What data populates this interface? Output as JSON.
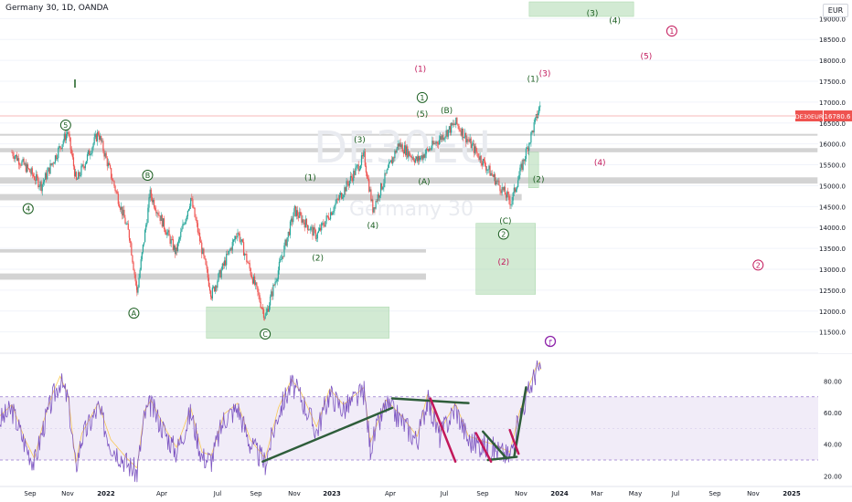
{
  "header": {
    "title": "Germany 30, 1D, OANDA"
  },
  "currency": "EUR",
  "watermark": {
    "symbol": "DE30EU",
    "name": "Germany 30"
  },
  "chart_data": {
    "type": "candlestick",
    "symbol": "Germany 30",
    "timeframe": "1D",
    "broker": "OANDA",
    "last_price": {
      "label": "DE30EUR",
      "value": "16780.6"
    },
    "price_axis": {
      "ticks": [
        11500,
        12000,
        12500,
        13000,
        13500,
        14000,
        14500,
        15000,
        15500,
        16000,
        16500,
        17000,
        17500,
        18000,
        18500,
        19000
      ],
      "range": [
        11100,
        19400
      ]
    },
    "time_axis": {
      "labels": [
        "Sep",
        "Nov",
        "2022",
        "Apr",
        "Jul",
        "Sep",
        "Nov",
        "2023",
        "Apr",
        "Jul",
        "Sep",
        "Nov",
        "2024",
        "Mar",
        "May",
        "Jul",
        "Sep",
        "Nov",
        "2025"
      ]
    },
    "price_path": [
      [
        "2021-08-20",
        15800
      ],
      [
        "2021-09-20",
        15300
      ],
      [
        "2021-10-06",
        15000
      ],
      [
        "2021-11-17",
        16300
      ],
      [
        "2021-12-01",
        15100
      ],
      [
        "2022-01-05",
        16270
      ],
      [
        "2022-02-24",
        13800
      ],
      [
        "2022-03-08",
        12450
      ],
      [
        "2022-03-29",
        14800
      ],
      [
        "2022-05-09",
        13400
      ],
      [
        "2022-06-02",
        14700
      ],
      [
        "2022-07-05",
        12400
      ],
      [
        "2022-08-16",
        13900
      ],
      [
        "2022-09-29",
        11850
      ],
      [
        "2022-11-15",
        14400
      ],
      [
        "2022-12-20",
        13800
      ],
      [
        "2023-03-06",
        15700
      ],
      [
        "2023-03-20",
        14450
      ],
      [
        "2023-04-30",
        16000
      ],
      [
        "2023-05-30",
        15600
      ],
      [
        "2023-07-31",
        16500
      ],
      [
        "2023-10-27",
        14600
      ],
      [
        "2023-12-14",
        17000
      ]
    ],
    "zones": [
      {
        "label": "",
        "price_range": [
          11350,
          12100
        ],
        "time_range": [
          "2022-06-27",
          "2023-04-15"
        ]
      },
      {
        "label": "",
        "price_range": [
          12400,
          14100
        ],
        "time_range": [
          "2023-09-01",
          "2023-12-05"
        ]
      },
      {
        "label": "",
        "price_range": [
          14950,
          15800
        ],
        "time_range": [
          "2023-11-24",
          "2023-12-10"
        ]
      },
      {
        "label": "",
        "price_range": [
          19050,
          19400
        ],
        "time_range": [
          "2023-11-25",
          "2024-05-10"
        ]
      }
    ],
    "bands": [
      {
        "price_range": [
          16200,
          16240
        ],
        "time_range": [
          "2021-08-01",
          "2025-02-28"
        ]
      },
      {
        "price_range": [
          15800,
          15900
        ],
        "time_range": [
          "2021-08-01",
          "2025-02-28"
        ]
      },
      {
        "price_range": [
          15050,
          15200
        ],
        "time_range": [
          "2021-08-01",
          "2025-02-28"
        ]
      },
      {
        "price_range": [
          14650,
          14800
        ],
        "time_range": [
          "2021-08-01",
          "2023-11-13"
        ]
      },
      {
        "price_range": [
          13400,
          13480
        ],
        "time_range": [
          "2021-08-01",
          "2023-06-13"
        ]
      },
      {
        "price_range": [
          12750,
          12900
        ],
        "time_range": [
          "2021-08-01",
          "2023-06-13"
        ]
      }
    ],
    "wave_labels": [
      {
        "text": "5",
        "circled": true,
        "color": "#1b5e20",
        "date": "2021-11-14",
        "price": 16450
      },
      {
        "text": "4",
        "circled": true,
        "color": "#1b5e20",
        "date": "2021-09-15",
        "price": 14450
      },
      {
        "text": "B",
        "circled": true,
        "color": "#1b5e20",
        "date": "2022-03-25",
        "price": 15250
      },
      {
        "text": "A",
        "circled": true,
        "color": "#1b5e20",
        "date": "2022-03-03",
        "price": 11950
      },
      {
        "text": "C",
        "circled": true,
        "color": "#1b5e20",
        "date": "2022-09-29",
        "price": 11450
      },
      {
        "text": "(1)",
        "circled": false,
        "color": "#1b5e20",
        "date": "2022-12-10",
        "price": 15200
      },
      {
        "text": "(2)",
        "circled": false,
        "color": "#1b5e20",
        "date": "2022-12-22",
        "price": 13270
      },
      {
        "text": "(3)",
        "circled": false,
        "color": "#1b5e20",
        "date": "2023-02-27",
        "price": 16100
      },
      {
        "text": "(4)",
        "circled": false,
        "color": "#1b5e20",
        "date": "2023-03-20",
        "price": 14050
      },
      {
        "text": "1",
        "circled": true,
        "color": "#1b5e20",
        "date": "2023-06-07",
        "price": 17110
      },
      {
        "text": "(5)",
        "circled": false,
        "color": "#1b5e20",
        "date": "2023-06-07",
        "price": 16710
      },
      {
        "text": "(A)",
        "circled": false,
        "color": "#1b5e20",
        "date": "2023-06-10",
        "price": 15100
      },
      {
        "text": "(B)",
        "circled": false,
        "color": "#1b5e20",
        "date": "2023-07-16",
        "price": 16800
      },
      {
        "text": "(C)",
        "circled": false,
        "color": "#1b5e20",
        "date": "2023-10-18",
        "price": 14160
      },
      {
        "text": "2",
        "circled": true,
        "color": "#1b5e20",
        "date": "2023-10-15",
        "price": 13840
      },
      {
        "text": "(2)",
        "circled": false,
        "color": "#1b5e20",
        "date": "2023-12-10",
        "price": 15150
      },
      {
        "text": "(1)",
        "circled": false,
        "color": "#1b5e20",
        "date": "2023-12-01",
        "price": 17550
      },
      {
        "text": "(3)",
        "circled": false,
        "color": "#1b5e20",
        "date": "2024-03-05",
        "price": 19130
      },
      {
        "text": "(4)",
        "circled": false,
        "color": "#1b5e20",
        "date": "2024-04-10",
        "price": 18950
      },
      {
        "text": "(1)",
        "circled": false,
        "color": "#c2185b",
        "date": "2023-06-04",
        "price": 17800
      },
      {
        "text": "(2)",
        "circled": false,
        "color": "#c2185b",
        "date": "2023-10-15",
        "price": 13170
      },
      {
        "text": "(3)",
        "circled": false,
        "color": "#c2185b",
        "date": "2023-12-20",
        "price": 17680
      },
      {
        "text": "(4)",
        "circled": false,
        "color": "#c2185b",
        "date": "2024-03-17",
        "price": 15560
      },
      {
        "text": "(5)",
        "circled": false,
        "color": "#c2185b",
        "date": "2024-05-30",
        "price": 18100
      },
      {
        "text": "1",
        "circled": true,
        "color": "#c2185b",
        "date": "2024-07-10",
        "price": 18700
      },
      {
        "text": "2",
        "circled": true,
        "color": "#c2185b",
        "date": "2024-11-25",
        "price": 13100
      }
    ],
    "rsi": {
      "ticks": [
        20,
        40,
        60,
        80
      ],
      "range": [
        15,
        97
      ],
      "band": [
        30,
        70
      ],
      "path": [
        [
          "2021-08-01",
          55
        ],
        [
          "2021-08-20",
          62
        ],
        [
          "2021-09-10",
          40
        ],
        [
          "2021-09-25",
          28
        ],
        [
          "2021-10-10",
          52
        ],
        [
          "2021-10-25",
          70
        ],
        [
          "2021-11-05",
          80
        ],
        [
          "2021-11-18",
          68
        ],
        [
          "2021-11-30",
          25
        ],
        [
          "2021-12-10",
          44
        ],
        [
          "2022-01-05",
          63
        ],
        [
          "2022-01-25",
          40
        ],
        [
          "2022-02-20",
          28
        ],
        [
          "2022-03-08",
          22
        ],
        [
          "2022-03-20",
          58
        ],
        [
          "2022-03-30",
          65
        ],
        [
          "2022-04-25",
          45
        ],
        [
          "2022-05-10",
          35
        ],
        [
          "2022-06-02",
          60
        ],
        [
          "2022-06-20",
          32
        ],
        [
          "2022-07-05",
          30
        ],
        [
          "2022-07-25",
          56
        ],
        [
          "2022-08-16",
          63
        ],
        [
          "2022-09-05",
          40
        ],
        [
          "2022-09-29",
          28
        ],
        [
          "2022-10-20",
          60
        ],
        [
          "2022-11-10",
          78
        ],
        [
          "2022-11-25",
          70
        ],
        [
          "2022-12-20",
          48
        ],
        [
          "2023-01-10",
          72
        ],
        [
          "2023-02-01",
          62
        ],
        [
          "2023-03-06",
          73
        ],
        [
          "2023-03-16",
          38
        ],
        [
          "2023-04-10",
          65
        ],
        [
          "2023-05-05",
          55
        ],
        [
          "2023-05-30",
          42
        ],
        [
          "2023-06-15",
          68
        ],
        [
          "2023-07-05",
          45
        ],
        [
          "2023-07-30",
          63
        ],
        [
          "2023-08-20",
          42
        ],
        [
          "2023-09-20",
          38
        ],
        [
          "2023-10-05",
          36
        ],
        [
          "2023-10-25",
          32
        ],
        [
          "2023-11-10",
          58
        ],
        [
          "2023-11-25",
          74
        ],
        [
          "2023-12-05",
          85
        ],
        [
          "2023-12-12",
          89
        ],
        [
          "2023-12-14",
          82
        ]
      ]
    },
    "rsi_trendlines": [
      {
        "color": "#2e5d3a",
        "from": [
          "2022-09-25",
          29
        ],
        "to": [
          "2023-04-20",
          63
        ]
      },
      {
        "color": "#2e5d3a",
        "from": [
          "2023-04-20",
          69
        ],
        "to": [
          "2023-08-20",
          66
        ]
      },
      {
        "color": "#2e5d3a",
        "from": [
          "2023-09-20",
          30
        ],
        "to": [
          "2023-11-05",
          32
        ]
      },
      {
        "color": "#2e5d3a",
        "from": [
          "2023-10-20",
          31
        ],
        "to": [
          "2023-09-12",
          48
        ]
      },
      {
        "color": "#2e5d3a",
        "from": [
          "2023-11-01",
          32
        ],
        "to": [
          "2023-11-20",
          76
        ]
      },
      {
        "color": "#c2185b",
        "from": [
          "2023-06-20",
          69
        ],
        "to": [
          "2023-07-30",
          29
        ]
      },
      {
        "color": "#c2185b",
        "from": [
          "2023-09-01",
          47
        ],
        "to": [
          "2023-09-25",
          29
        ]
      },
      {
        "color": "#c2185b",
        "from": [
          "2023-10-25",
          49
        ],
        "to": [
          "2023-11-08",
          34
        ]
      }
    ]
  }
}
